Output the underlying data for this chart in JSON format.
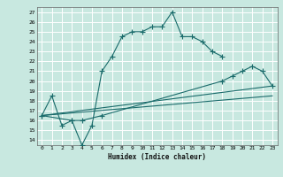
{
  "xlabel": "Humidex (Indice chaleur)",
  "bg_color": "#c8e8e0",
  "grid_color": "#ffffff",
  "line_color": "#1a6b6b",
  "xlim": [
    -0.5,
    23.5
  ],
  "ylim": [
    13.5,
    27.5
  ],
  "xticks": [
    0,
    1,
    2,
    3,
    4,
    5,
    6,
    7,
    8,
    9,
    10,
    11,
    12,
    13,
    14,
    15,
    16,
    17,
    18,
    19,
    20,
    21,
    22,
    23
  ],
  "yticks": [
    14,
    15,
    16,
    17,
    18,
    19,
    20,
    21,
    22,
    23,
    24,
    25,
    26,
    27
  ],
  "line1_x": [
    0,
    1,
    2,
    3,
    4,
    5,
    6,
    7,
    8,
    9,
    10,
    11,
    12,
    13,
    14,
    15,
    16,
    17,
    18
  ],
  "line1_y": [
    16.5,
    18.5,
    15.5,
    16.0,
    13.5,
    15.5,
    21.0,
    22.5,
    24.5,
    25.0,
    25.0,
    25.5,
    25.5,
    27.0,
    24.5,
    24.5,
    24.0,
    23.0,
    22.5
  ],
  "line2_x": [
    0,
    3,
    4,
    6,
    18,
    19,
    20,
    21,
    22,
    23
  ],
  "line2_y": [
    16.5,
    16.0,
    16.0,
    16.5,
    20.0,
    20.5,
    21.0,
    21.5,
    21.0,
    19.5
  ],
  "line3_x": [
    0,
    23
  ],
  "line3_y": [
    16.5,
    19.5
  ],
  "line4_x": [
    0,
    23
  ],
  "line4_y": [
    16.5,
    18.5
  ]
}
